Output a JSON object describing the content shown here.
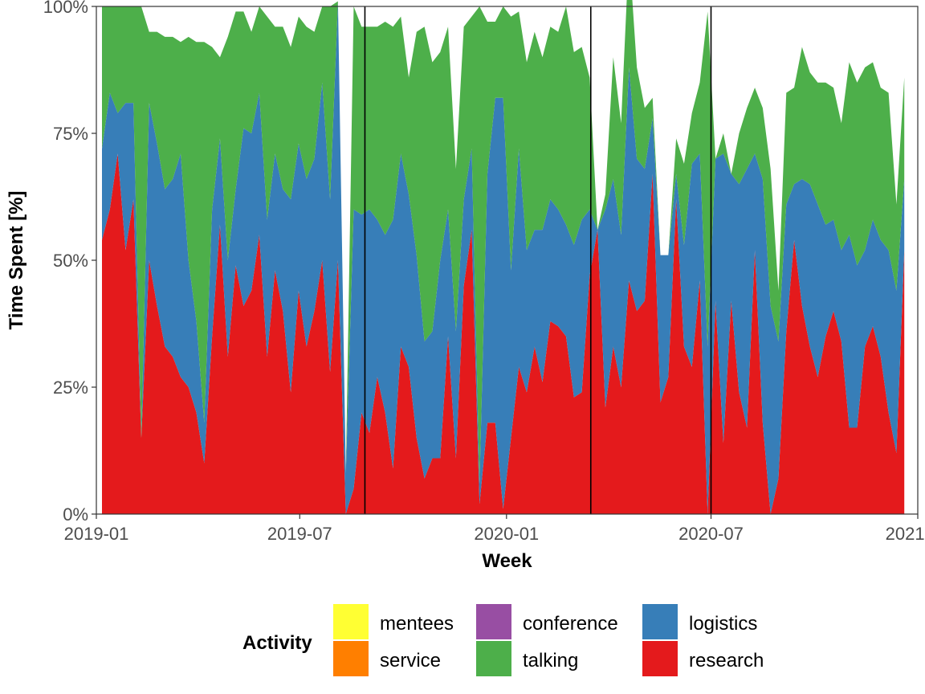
{
  "chart_data": {
    "type": "area",
    "stacked": "percent",
    "xlabel": "Week",
    "ylabel": "Time Spent [%]",
    "x_range": [
      "2019-01-01",
      "2021-01-01"
    ],
    "y_range": [
      0,
      100
    ],
    "x_ticks": [
      {
        "date": "2019-01-01",
        "label": "2019-01"
      },
      {
        "date": "2019-07-01",
        "label": "2019-07"
      },
      {
        "date": "2020-01-01",
        "label": "2020-01"
      },
      {
        "date": "2020-07-01",
        "label": "2020-07"
      },
      {
        "date": "2021-01-01",
        "label": "2021-01"
      }
    ],
    "y_ticks": [
      {
        "value": 0,
        "label": "0%"
      },
      {
        "value": 25,
        "label": "25%"
      },
      {
        "value": 50,
        "label": "50%"
      },
      {
        "value": 75,
        "label": "75%"
      },
      {
        "value": 100,
        "label": "100%"
      }
    ],
    "vlines": [
      "2019-08-28",
      "2020-03-16",
      "2020-07-01"
    ],
    "legend_title": "Activity",
    "legend_position": "bottom",
    "stack_order": [
      "research",
      "logistics",
      "talking",
      "conference",
      "service",
      "mentees"
    ],
    "legend_order": [
      "mentees",
      "service",
      "conference",
      "talking",
      "logistics",
      "research"
    ],
    "colors": {
      "research": "#E41A1C",
      "logistics": "#377EB8",
      "talking": "#4DAF4A",
      "conference": "#984EA3",
      "service": "#FF7F00",
      "mentees": "#FFFF33"
    },
    "series": [
      {
        "name": "research",
        "values": [
          54,
          60,
          71,
          52,
          62,
          15,
          50,
          41,
          33,
          31,
          27,
          25,
          20,
          10,
          35,
          57,
          31,
          49,
          41,
          44,
          55,
          31,
          48,
          40,
          24,
          44,
          33,
          40,
          50,
          28,
          50,
          0,
          5,
          20,
          16,
          27,
          20,
          9,
          33,
          29,
          15,
          7,
          11,
          11,
          35,
          11,
          45,
          56,
          2,
          18,
          18,
          1,
          15,
          29,
          24,
          33,
          26,
          38,
          37,
          35,
          23,
          24,
          47,
          56,
          21,
          33,
          25,
          46,
          40,
          42,
          67,
          22,
          27,
          62,
          33,
          29,
          46,
          0,
          42,
          14,
          42,
          24,
          17,
          52,
          18,
          0,
          7,
          36,
          54,
          41,
          33,
          27,
          35,
          40,
          34,
          17,
          17,
          33,
          37,
          31,
          20,
          12,
          52
        ]
      },
      {
        "name": "logistics",
        "values": [
          18,
          23,
          8,
          29,
          19,
          0,
          31,
          32,
          31,
          35,
          44,
          25,
          18,
          8,
          25,
          17,
          19,
          15,
          35,
          31,
          28,
          27,
          23,
          24,
          38,
          29,
          33,
          30,
          35,
          34,
          51,
          8,
          55,
          39,
          44,
          31,
          35,
          49,
          38,
          34,
          36,
          27,
          25,
          39,
          25,
          25,
          17,
          16,
          4,
          49,
          64,
          81,
          33,
          43,
          28,
          23,
          30,
          24,
          23,
          22,
          30,
          34,
          13,
          0,
          39,
          33,
          30,
          42,
          30,
          26,
          11,
          29,
          24,
          5,
          20,
          40,
          25,
          33,
          28,
          57,
          25,
          41,
          51,
          19,
          48,
          41,
          27,
          25,
          11,
          25,
          32,
          34,
          22,
          18,
          18,
          38,
          32,
          19,
          21,
          23,
          32,
          32,
          14
        ]
      },
      {
        "name": "talking",
        "values": [
          28,
          17,
          21,
          19,
          19,
          85,
          14,
          22,
          30,
          28,
          22,
          44,
          55,
          75,
          32,
          16,
          44,
          35,
          23,
          20,
          17,
          40,
          25,
          32,
          30,
          25,
          30,
          25,
          15,
          38,
          0,
          0,
          40,
          37,
          36,
          38,
          42,
          38,
          27,
          23,
          44,
          62,
          53,
          41,
          36,
          32,
          34,
          26,
          94,
          30,
          15,
          18,
          50,
          27,
          37,
          39,
          34,
          34,
          35,
          43,
          38,
          34,
          26,
          0,
          3,
          24,
          22,
          23,
          18,
          12,
          4,
          0,
          0,
          7,
          16,
          10,
          14,
          66,
          0,
          4,
          0,
          10,
          12,
          13,
          14,
          27,
          10,
          22,
          19,
          26,
          22,
          24,
          28,
          26,
          25,
          34,
          36,
          36,
          31,
          30,
          31,
          17,
          20
        ]
      },
      {
        "name": "conference",
        "values": [
          0,
          0,
          0,
          0,
          0,
          0,
          0,
          0,
          0,
          0,
          0,
          0,
          0,
          0,
          0,
          0,
          0,
          0,
          0,
          0,
          0,
          0,
          0,
          0,
          0,
          0,
          0,
          0,
          0,
          0,
          0,
          0,
          0,
          0,
          0,
          0,
          0,
          0,
          0,
          0,
          0,
          0,
          0,
          0,
          0,
          0,
          0,
          0,
          0,
          0,
          0,
          0,
          0,
          0,
          0,
          0,
          0,
          0,
          0,
          0,
          0,
          0,
          0,
          0,
          0,
          0,
          0,
          0,
          0,
          0,
          0,
          0,
          0,
          0,
          0,
          0,
          0,
          0,
          0,
          0,
          0,
          0,
          0,
          0,
          0,
          0,
          0,
          0,
          0,
          0,
          0,
          0,
          0,
          0,
          0,
          0,
          0,
          0,
          0,
          0,
          0,
          0,
          0
        ]
      },
      {
        "name": "service",
        "values": [
          0,
          0,
          0,
          0,
          0,
          0,
          0,
          0,
          0,
          0,
          0,
          0,
          0,
          0,
          0,
          0,
          0,
          0,
          0,
          0,
          0,
          0,
          0,
          0,
          0,
          0,
          0,
          0,
          0,
          0,
          0,
          0,
          0,
          0,
          0,
          0,
          0,
          0,
          0,
          0,
          0,
          0,
          0,
          0,
          0,
          0,
          0,
          0,
          0,
          0,
          0,
          0,
          0,
          0,
          0,
          0,
          0,
          0,
          0,
          0,
          0,
          0,
          0,
          0,
          0,
          0,
          0,
          0,
          0,
          0,
          0,
          0,
          0,
          0,
          0,
          0,
          0,
          0,
          0,
          0,
          0,
          0,
          0,
          0,
          0,
          0,
          0,
          0,
          0,
          0,
          0,
          0,
          0,
          0,
          0,
          0,
          0,
          0,
          0,
          0,
          0,
          0,
          0
        ]
      },
      {
        "name": "mentees",
        "values": [
          0,
          0,
          0,
          0,
          0,
          0,
          0,
          0,
          0,
          0,
          0,
          0,
          0,
          0,
          0,
          0,
          0,
          0,
          0,
          0,
          0,
          0,
          0,
          0,
          0,
          0,
          0,
          0,
          0,
          0,
          0,
          0,
          0,
          0,
          0,
          0,
          0,
          0,
          0,
          0,
          0,
          0,
          0,
          0,
          0,
          0,
          0,
          0,
          0,
          0,
          0,
          0,
          0,
          0,
          0,
          0,
          0,
          0,
          0,
          0,
          0,
          0,
          0,
          0,
          0,
          0,
          0,
          0,
          0,
          0,
          0,
          0,
          0,
          0,
          0,
          0,
          0,
          0,
          0,
          0,
          0,
          0,
          0,
          0,
          0,
          0,
          0,
          0,
          0,
          0,
          0,
          0,
          0,
          0,
          0,
          0,
          0,
          0,
          0,
          0,
          0,
          0,
          0
        ]
      }
    ]
  }
}
